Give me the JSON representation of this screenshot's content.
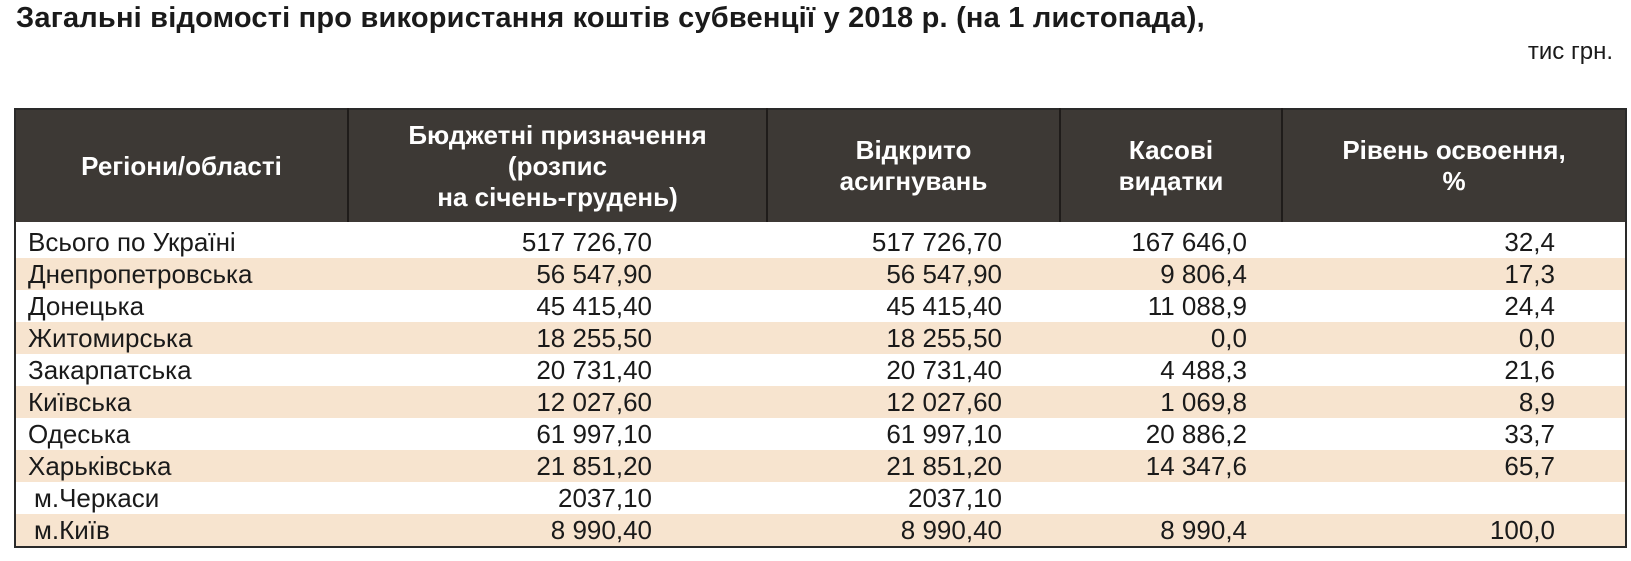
{
  "title": "Загальні відомості про використання коштів субвенції у 2018 р. (на 1 листопада),",
  "unit": "тис грн.",
  "headers": {
    "region": "Регіони/області",
    "budget_line1": "Бюджетні призначення",
    "budget_line2": "(розпис",
    "budget_line3": "на січень-грудень)",
    "opened_line1": "Відкрито",
    "opened_line2": "асигнувань",
    "cash_line1": "Касові",
    "cash_line2": "видатки",
    "level_line1": "Рівень освоення,",
    "level_line2": "%"
  },
  "rows": [
    {
      "region": "Всього по Україні",
      "budget": "517 726,70",
      "opened": "517 726,70",
      "cash": "167 646,0",
      "level": "32,4"
    },
    {
      "region": "Днепропетровська",
      "budget": "56 547,90",
      "opened": "56 547,90",
      "cash": "9 806,4",
      "level": "17,3"
    },
    {
      "region": "Донецька",
      "budget": "45 415,40",
      "opened": "45 415,40",
      "cash": "11 088,9",
      "level": "24,4"
    },
    {
      "region": "Житомирська",
      "budget": "18 255,50",
      "opened": "18 255,50",
      "cash": "0,0",
      "level": "0,0"
    },
    {
      "region": "Закарпатська",
      "budget": "20 731,40",
      "opened": "20 731,40",
      "cash": "4 488,3",
      "level": "21,6"
    },
    {
      "region": "Київська",
      "budget": "12 027,60",
      "opened": "12 027,60",
      "cash": "1 069,8",
      "level": "8,9"
    },
    {
      "region": "Одеська",
      "budget": "61 997,10",
      "opened": "61 997,10",
      "cash": "20 886,2",
      "level": "33,7"
    },
    {
      "region": "Харьківська",
      "budget": "21 851,20",
      "opened": "21 851,20",
      "cash": "14 347,6",
      "level": "65,7"
    },
    {
      "region": "м.Черкаси",
      "budget": "2037,10",
      "opened": "2037,10",
      "cash": "",
      "level": ""
    },
    {
      "region": "м.Київ",
      "budget": "8 990,40",
      "opened": "8 990,40",
      "cash": "8 990,4",
      "level": "100,0"
    }
  ]
}
